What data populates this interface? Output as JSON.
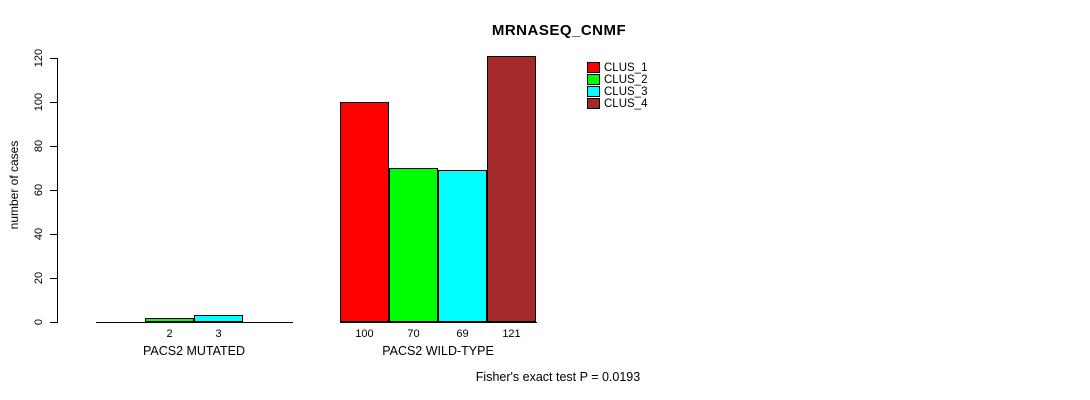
{
  "chart_data": {
    "type": "bar",
    "title": "MRNASEQ_CNMF",
    "ylabel": "number of cases",
    "xlabel": "",
    "yticks": [
      0,
      20,
      40,
      60,
      80,
      100,
      120
    ],
    "ylim": [
      0,
      121
    ],
    "grid": false,
    "legend_position": "top-right",
    "series": [
      {
        "name": "CLUS_1",
        "color": "#FF0000"
      },
      {
        "name": "CLUS_2",
        "color": "#00FF00"
      },
      {
        "name": "CLUS_3",
        "color": "#00FFFF"
      },
      {
        "name": "CLUS_4",
        "color": "#A52A2A"
      }
    ],
    "groups": [
      {
        "label": "PACS2 MUTATED",
        "values": [
          0,
          2,
          3,
          0
        ]
      },
      {
        "label": "PACS2 WILD-TYPE",
        "values": [
          100,
          70,
          69,
          121
        ]
      }
    ],
    "annotation": "Fisher's exact test P = 0.0193"
  }
}
